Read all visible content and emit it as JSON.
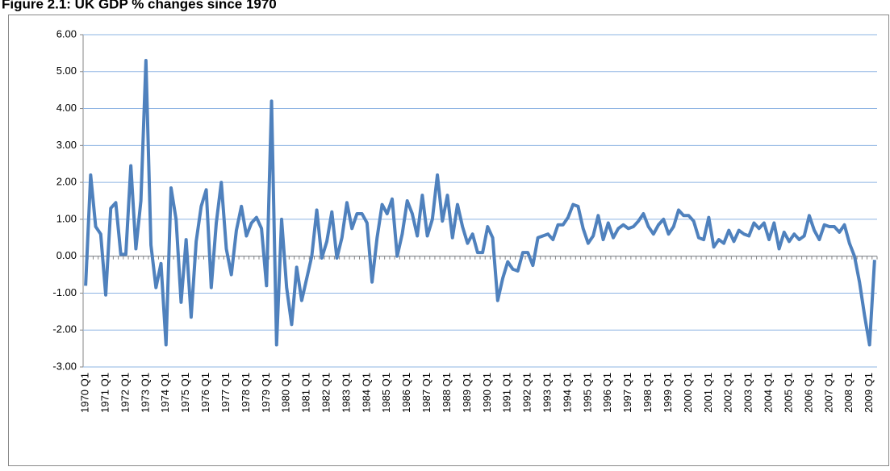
{
  "chart_data": {
    "type": "line",
    "title": "Figure 2.1: UK GDP % changes since 1970",
    "categories": [
      "1970 Q1",
      null,
      null,
      null,
      "1971 Q1",
      null,
      null,
      null,
      "1972 Q1",
      null,
      null,
      null,
      "1973 Q1",
      null,
      null,
      null,
      "1974 Q1",
      null,
      null,
      null,
      "1975 Q1",
      null,
      null,
      null,
      "1976 Q1",
      null,
      null,
      null,
      "1977 Q1",
      null,
      null,
      null,
      "1978 Q1",
      null,
      null,
      null,
      "1979 Q1",
      null,
      null,
      null,
      "1980 Q1",
      null,
      null,
      null,
      "1981 Q1",
      null,
      null,
      null,
      "1982 Q1",
      null,
      null,
      null,
      "1983 Q1",
      null,
      null,
      null,
      "1984 Q1",
      null,
      null,
      null,
      "1985 Q1",
      null,
      null,
      null,
      "1986 Q1",
      null,
      null,
      null,
      "1987 Q1",
      null,
      null,
      null,
      "1988 Q1",
      null,
      null,
      null,
      "1989 Q1",
      null,
      null,
      null,
      "1990 Q1",
      null,
      null,
      null,
      "1991 Q1",
      null,
      null,
      null,
      "1992 Q1",
      null,
      null,
      null,
      "1993 Q1",
      null,
      null,
      null,
      "1994 Q1",
      null,
      null,
      null,
      "1995 Q1",
      null,
      null,
      null,
      "1996 Q1",
      null,
      null,
      null,
      "1997 Q1",
      null,
      null,
      null,
      "1998 Q1",
      null,
      null,
      null,
      "1999 Q1",
      null,
      null,
      null,
      "2000 Q1",
      null,
      null,
      null,
      "2001 Q1",
      null,
      null,
      null,
      "2002 Q1",
      null,
      null,
      null,
      "2003 Q1",
      null,
      null,
      null,
      "2004 Q1",
      null,
      null,
      null,
      "2005 Q1",
      null,
      null,
      null,
      "2006 Q1",
      null,
      null,
      null,
      "2007 Q1",
      null,
      null,
      null,
      "2008 Q1",
      null,
      null,
      null,
      "2009 Q1",
      null
    ],
    "values": [
      -0.8,
      2.2,
      0.8,
      0.6,
      -1.05,
      1.3,
      1.45,
      0.05,
      0.05,
      2.45,
      0.2,
      1.5,
      5.3,
      0.3,
      -0.85,
      -0.2,
      -2.4,
      1.85,
      1.0,
      -1.25,
      0.45,
      -1.65,
      0.4,
      1.35,
      1.8,
      -0.85,
      0.9,
      2.0,
      0.2,
      -0.5,
      0.7,
      1.35,
      0.55,
      0.9,
      1.05,
      0.75,
      -0.8,
      4.2,
      -2.4,
      1.0,
      -0.85,
      -1.85,
      -0.3,
      -1.2,
      -0.6,
      0.0,
      1.25,
      -0.05,
      0.4,
      1.2,
      -0.05,
      0.5,
      1.45,
      0.75,
      1.15,
      1.15,
      0.9,
      -0.7,
      0.5,
      1.4,
      1.15,
      1.55,
      0.0,
      0.6,
      1.5,
      1.15,
      0.55,
      1.65,
      0.55,
      1.0,
      2.2,
      0.95,
      1.65,
      0.5,
      1.4,
      0.8,
      0.35,
      0.6,
      0.1,
      0.1,
      0.8,
      0.5,
      -1.2,
      -0.6,
      -0.15,
      -0.35,
      -0.4,
      0.1,
      0.1,
      -0.25,
      0.5,
      0.55,
      0.6,
      0.45,
      0.85,
      0.85,
      1.05,
      1.4,
      1.35,
      0.75,
      0.35,
      0.55,
      1.1,
      0.45,
      0.9,
      0.5,
      0.75,
      0.85,
      0.75,
      0.8,
      0.95,
      1.15,
      0.8,
      0.6,
      0.85,
      1.0,
      0.6,
      0.8,
      1.25,
      1.1,
      1.1,
      0.95,
      0.5,
      0.45,
      1.05,
      0.25,
      0.45,
      0.35,
      0.7,
      0.4,
      0.7,
      0.6,
      0.55,
      0.9,
      0.75,
      0.9,
      0.45,
      0.9,
      0.2,
      0.65,
      0.4,
      0.6,
      0.45,
      0.55,
      1.1,
      0.7,
      0.45,
      0.85,
      0.8,
      0.8,
      0.65,
      0.85,
      0.35,
      0.0,
      -0.7,
      -1.6,
      -2.4,
      -0.1
    ],
    "color": "#4f81bd",
    "ylim": [
      -3,
      6
    ],
    "yticks": [
      {
        "value": -3,
        "label": "-3.00"
      },
      {
        "value": -2,
        "label": "-2.00"
      },
      {
        "value": -1,
        "label": "-1.00"
      },
      {
        "value": 0,
        "label": "0.00"
      },
      {
        "value": 1,
        "label": "1.00"
      },
      {
        "value": 2,
        "label": "2.00"
      },
      {
        "value": 3,
        "label": "3.00"
      },
      {
        "value": 4,
        "label": "4.00"
      },
      {
        "value": 5,
        "label": "5.00"
      },
      {
        "value": 6,
        "label": "6.00"
      }
    ],
    "grid": true
  }
}
